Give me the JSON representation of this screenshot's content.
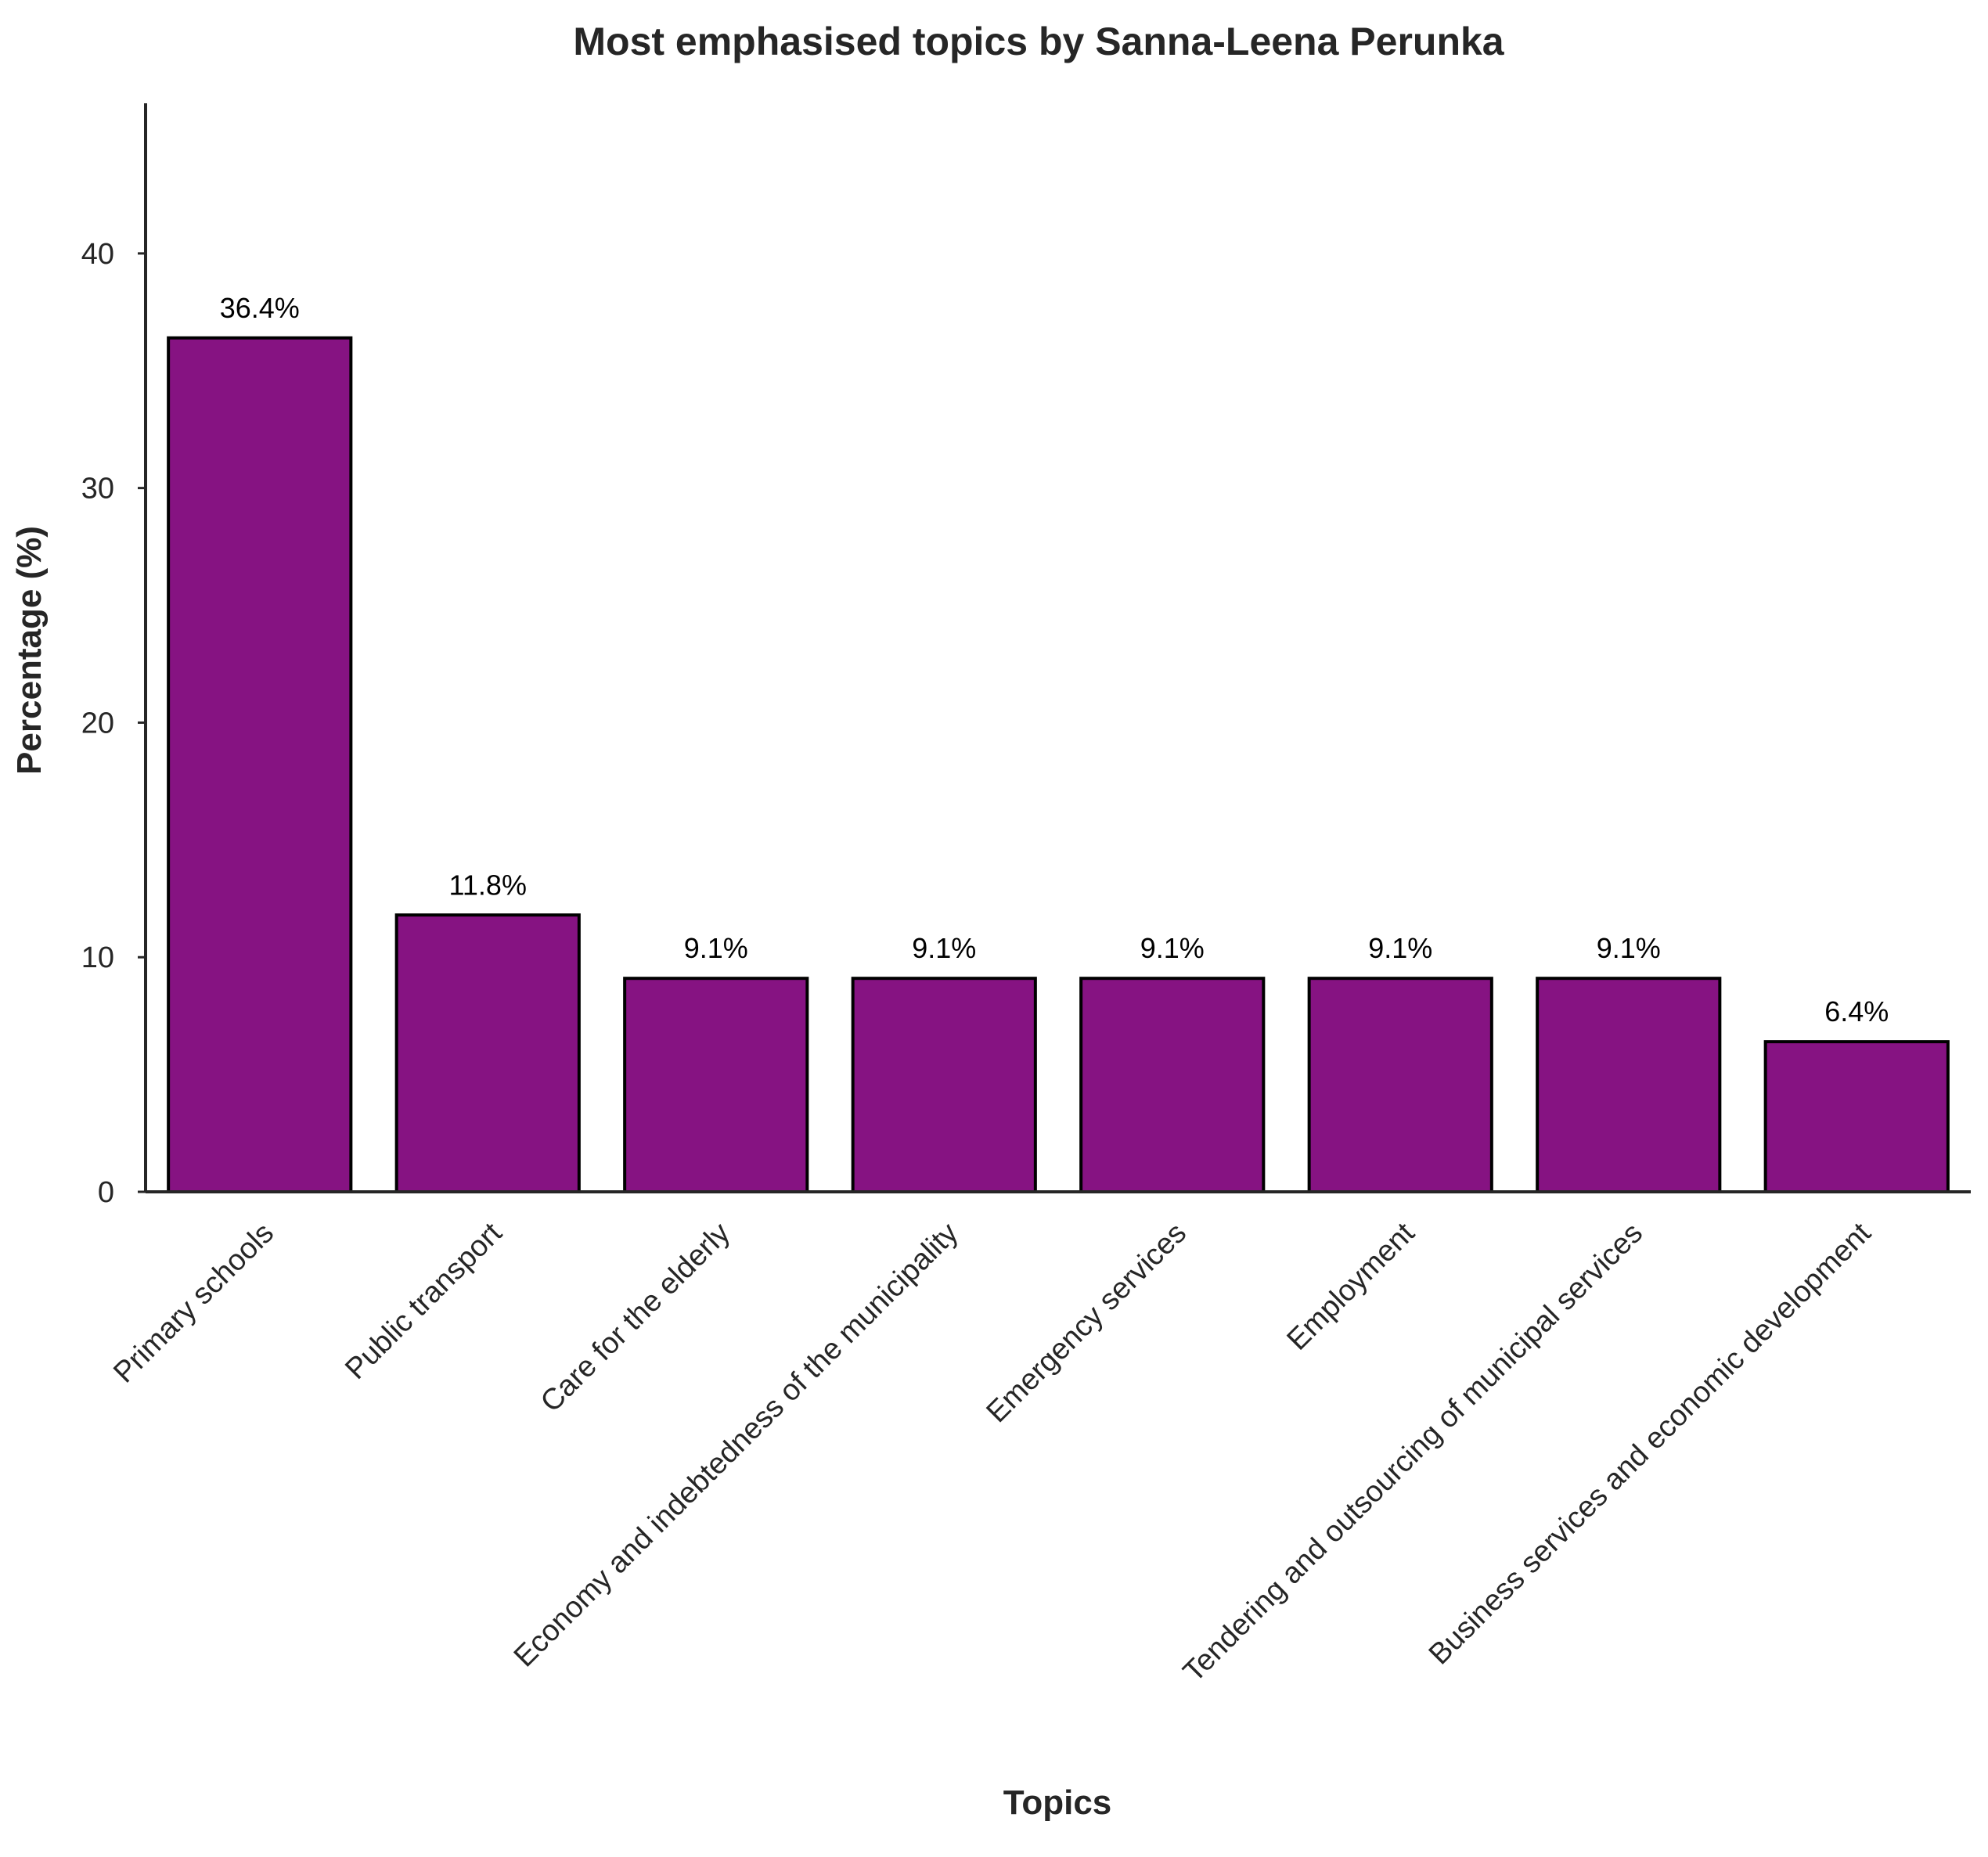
{
  "chart_data": {
    "type": "bar",
    "title": "Most emphasised topics by Sanna-Leena Perunka",
    "xlabel": "Topics",
    "ylabel": "Percentage (%)",
    "categories": [
      "Primary schools",
      "Public transport",
      "Care for the elderly",
      "Economy and indebtedness of the municipality",
      "Emergency services",
      "Employment",
      "Tendering and outsourcing of municipal services",
      "Business services and economic development"
    ],
    "values": [
      36.4,
      11.8,
      9.1,
      9.1,
      9.1,
      9.1,
      9.1,
      6.4
    ],
    "value_labels": [
      "36.4%",
      "11.8%",
      "9.1%",
      "9.1%",
      "9.1%",
      "9.1%",
      "9.1%",
      "6.4%"
    ],
    "ylim": [
      0,
      46.4
    ],
    "yticks": [
      0,
      10,
      20,
      30,
      40
    ],
    "grid": false,
    "bar_color": "#861382",
    "bar_edge_color": "#000000"
  }
}
